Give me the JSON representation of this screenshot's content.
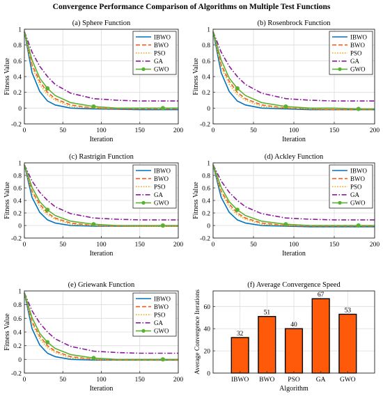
{
  "figure": {
    "title": "Convergence Performance Comparison of Algorithms on Multiple Test Functions"
  },
  "series_styles": [
    {
      "name": "IBWO",
      "color": "#0072BD",
      "dash": "solid",
      "marker": "none"
    },
    {
      "name": "BWO",
      "color": "#F05A1A",
      "dash": "dashed",
      "marker": "none"
    },
    {
      "name": "PSO",
      "color": "#EDB120",
      "dash": "dotted",
      "marker": "none"
    },
    {
      "name": "GA",
      "color": "#8B1A9B",
      "dash": "dashdot",
      "marker": "none"
    },
    {
      "name": "GWO",
      "color": "#5BB12F",
      "dash": "solid",
      "marker": "circle"
    }
  ],
  "chart_data": [
    {
      "type": "line",
      "title": "(a) Sphere Function",
      "xlabel": "Iteration",
      "ylabel": "Fitness Value",
      "xlim": [
        0,
        200
      ],
      "ylim": [
        -0.2,
        1.0
      ],
      "xticks": [
        0,
        50,
        100,
        150,
        200
      ],
      "yticks": [
        -0.2,
        0,
        0.2,
        0.4,
        0.6,
        0.8,
        1
      ],
      "grid": true,
      "legend": "top-right",
      "x": [
        0,
        10,
        20,
        30,
        40,
        60,
        90,
        120,
        150,
        180,
        200
      ],
      "series": [
        {
          "name": "IBWO",
          "values": [
            0.97,
            0.45,
            0.21,
            0.09,
            0.04,
            0.0,
            -0.01,
            -0.015,
            -0.02,
            -0.02,
            -0.02
          ]
        },
        {
          "name": "BWO",
          "values": [
            0.97,
            0.55,
            0.34,
            0.2,
            0.12,
            0.04,
            0.0,
            -0.01,
            -0.01,
            -0.01,
            -0.01
          ]
        },
        {
          "name": "PSO",
          "values": [
            0.97,
            0.52,
            0.3,
            0.17,
            0.1,
            0.02,
            0.0,
            0.0,
            0.0,
            0.0,
            0.0
          ]
        },
        {
          "name": "GA",
          "values": [
            0.97,
            0.71,
            0.53,
            0.4,
            0.3,
            0.19,
            0.12,
            0.1,
            0.09,
            0.09,
            0.09
          ]
        },
        {
          "name": "GWO",
          "values": [
            0.97,
            0.61,
            0.38,
            0.25,
            0.16,
            0.07,
            0.02,
            0.0,
            0.0,
            0.0,
            0.0
          ]
        }
      ]
    },
    {
      "type": "line",
      "title": "(b) Rosenbrock Function",
      "xlabel": "Iteration",
      "ylabel": "Fitness Value",
      "xlim": [
        0,
        200
      ],
      "ylim": [
        -0.2,
        1.0
      ],
      "xticks": [
        0,
        50,
        100,
        150,
        200
      ],
      "yticks": [
        -0.2,
        0,
        0.2,
        0.4,
        0.6,
        0.8,
        1
      ],
      "grid": true,
      "legend": "top-right",
      "x": [
        0,
        10,
        20,
        30,
        40,
        60,
        90,
        120,
        150,
        180,
        200
      ],
      "series": [
        {
          "name": "IBWO",
          "values": [
            0.97,
            0.45,
            0.21,
            0.09,
            0.04,
            0.0,
            -0.01,
            -0.02,
            -0.02,
            -0.02,
            -0.02
          ]
        },
        {
          "name": "BWO",
          "values": [
            0.97,
            0.55,
            0.34,
            0.2,
            0.12,
            0.04,
            0.0,
            -0.01,
            -0.02,
            -0.02,
            -0.02
          ]
        },
        {
          "name": "PSO",
          "values": [
            0.97,
            0.52,
            0.3,
            0.17,
            0.1,
            0.02,
            0.0,
            -0.01,
            -0.01,
            -0.01,
            -0.01
          ]
        },
        {
          "name": "GA",
          "values": [
            0.97,
            0.71,
            0.53,
            0.4,
            0.3,
            0.19,
            0.12,
            0.1,
            0.09,
            0.09,
            0.09
          ]
        },
        {
          "name": "GWO",
          "values": [
            0.97,
            0.61,
            0.38,
            0.25,
            0.16,
            0.07,
            0.02,
            0.0,
            0.0,
            -0.01,
            -0.01
          ]
        }
      ]
    },
    {
      "type": "line",
      "title": "(c) Rastrigin Function",
      "xlabel": "Iteration",
      "ylabel": "Fitness Value",
      "xlim": [
        0,
        200
      ],
      "ylim": [
        -0.2,
        1.0
      ],
      "xticks": [
        0,
        50,
        100,
        150,
        200
      ],
      "yticks": [
        -0.2,
        0,
        0.2,
        0.4,
        0.6,
        0.8,
        1
      ],
      "grid": true,
      "legend": "top-right",
      "x": [
        0,
        10,
        20,
        30,
        40,
        60,
        90,
        120,
        150,
        180,
        200
      ],
      "series": [
        {
          "name": "IBWO",
          "values": [
            0.97,
            0.45,
            0.21,
            0.09,
            0.04,
            0.0,
            -0.01,
            -0.01,
            -0.01,
            -0.01,
            -0.01
          ]
        },
        {
          "name": "BWO",
          "values": [
            0.97,
            0.55,
            0.34,
            0.2,
            0.12,
            0.04,
            0.0,
            -0.01,
            -0.01,
            -0.01,
            -0.01
          ]
        },
        {
          "name": "PSO",
          "values": [
            0.97,
            0.52,
            0.3,
            0.17,
            0.1,
            0.02,
            0.0,
            0.0,
            -0.01,
            -0.01,
            -0.01
          ]
        },
        {
          "name": "GA",
          "values": [
            0.97,
            0.71,
            0.53,
            0.4,
            0.3,
            0.19,
            0.12,
            0.1,
            0.09,
            0.09,
            0.09
          ]
        },
        {
          "name": "GWO",
          "values": [
            0.97,
            0.61,
            0.38,
            0.25,
            0.16,
            0.07,
            0.02,
            0.0,
            0.0,
            0.0,
            0.0
          ]
        }
      ]
    },
    {
      "type": "line",
      "title": "(d) Ackley Function",
      "xlabel": "Iteration",
      "ylabel": "Fitness Value",
      "xlim": [
        0,
        200
      ],
      "ylim": [
        -0.2,
        1.0
      ],
      "xticks": [
        0,
        50,
        100,
        150,
        200
      ],
      "yticks": [
        -0.2,
        0,
        0.2,
        0.4,
        0.6,
        0.8,
        1
      ],
      "grid": true,
      "legend": "top-right",
      "x": [
        0,
        10,
        20,
        30,
        40,
        60,
        90,
        120,
        150,
        180,
        200
      ],
      "series": [
        {
          "name": "IBWO",
          "values": [
            0.97,
            0.45,
            0.21,
            0.09,
            0.04,
            0.0,
            -0.01,
            -0.02,
            -0.02,
            -0.02,
            -0.02
          ]
        },
        {
          "name": "BWO",
          "values": [
            0.97,
            0.55,
            0.34,
            0.2,
            0.12,
            0.04,
            0.0,
            -0.01,
            -0.01,
            -0.01,
            -0.01
          ]
        },
        {
          "name": "PSO",
          "values": [
            0.97,
            0.52,
            0.3,
            0.17,
            0.1,
            0.02,
            0.0,
            0.0,
            0.0,
            0.0,
            0.0
          ]
        },
        {
          "name": "GA",
          "values": [
            0.97,
            0.71,
            0.53,
            0.4,
            0.3,
            0.19,
            0.12,
            0.1,
            0.09,
            0.09,
            0.09
          ]
        },
        {
          "name": "GWO",
          "values": [
            0.97,
            0.61,
            0.38,
            0.25,
            0.16,
            0.07,
            0.02,
            0.0,
            0.0,
            0.0,
            0.0
          ]
        }
      ]
    },
    {
      "type": "line",
      "title": "(e) Griewank Function",
      "xlabel": "Iteration",
      "ylabel": "Fitness Value",
      "xlim": [
        0,
        200
      ],
      "ylim": [
        -0.2,
        1.0
      ],
      "xticks": [
        0,
        50,
        100,
        150,
        200
      ],
      "yticks": [
        -0.2,
        0,
        0.2,
        0.4,
        0.6,
        0.8,
        1
      ],
      "grid": true,
      "legend": "top-right",
      "x": [
        0,
        10,
        20,
        30,
        40,
        60,
        90,
        120,
        150,
        180,
        200
      ],
      "series": [
        {
          "name": "IBWO",
          "values": [
            0.97,
            0.45,
            0.21,
            0.09,
            0.04,
            0.0,
            -0.01,
            -0.01,
            -0.01,
            -0.01,
            -0.01
          ]
        },
        {
          "name": "BWO",
          "values": [
            0.97,
            0.55,
            0.34,
            0.2,
            0.12,
            0.04,
            0.0,
            -0.01,
            -0.01,
            -0.01,
            -0.01
          ]
        },
        {
          "name": "PSO",
          "values": [
            0.97,
            0.52,
            0.3,
            0.17,
            0.1,
            0.02,
            0.0,
            0.0,
            0.0,
            0.0,
            0.0
          ]
        },
        {
          "name": "GA",
          "values": [
            0.97,
            0.71,
            0.53,
            0.4,
            0.3,
            0.19,
            0.12,
            0.1,
            0.09,
            0.09,
            0.09
          ]
        },
        {
          "name": "GWO",
          "values": [
            0.97,
            0.61,
            0.38,
            0.25,
            0.16,
            0.07,
            0.02,
            0.0,
            0.0,
            0.0,
            0.0
          ]
        }
      ]
    },
    {
      "type": "bar",
      "title": "(f) Average Convergence Speed",
      "xlabel": "Algorithm",
      "ylabel": "Average Convergence Iterations",
      "ylim": [
        0,
        74
      ],
      "yticks": [
        0,
        20,
        40,
        60
      ],
      "grid": true,
      "categories": [
        "IBWO",
        "BWO",
        "PSO",
        "GA",
        "GWO"
      ],
      "values": [
        32,
        51,
        40,
        67,
        53
      ],
      "bar_color": "#FF5A0A",
      "data_labels": [
        "32",
        "51",
        "40",
        "67",
        "53"
      ]
    }
  ]
}
